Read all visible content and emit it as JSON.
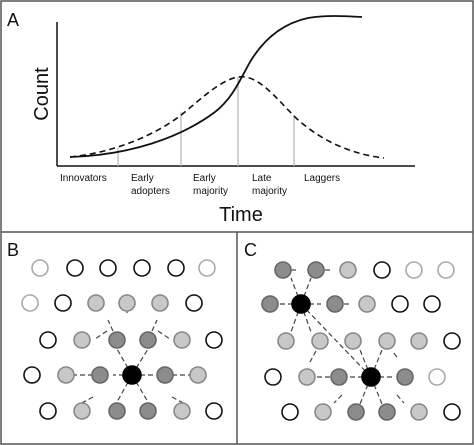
{
  "panels": {
    "a": {
      "letter": "A",
      "y_axis_label": "Count",
      "x_axis_label": "Time",
      "curves": {
        "cumulative_adoption": {
          "style": "solid",
          "shape": "s-curve"
        },
        "new_adopters": {
          "style": "dashed",
          "shape": "bell-curve"
        }
      },
      "phases": [
        {
          "id": "innovators",
          "lines": [
            "Innovators"
          ]
        },
        {
          "id": "early-adopters",
          "lines": [
            "Early",
            "adopters"
          ]
        },
        {
          "id": "early-majority",
          "lines": [
            "Early",
            "majority"
          ]
        },
        {
          "id": "late-majority",
          "lines": [
            "Late",
            "majority"
          ]
        },
        {
          "id": "laggers",
          "lines": [
            "Laggers"
          ]
        }
      ]
    },
    "b": {
      "letter": "B",
      "pattern": "single-seed-radial-spread"
    },
    "c": {
      "letter": "C",
      "pattern": "two-seed-spread"
    }
  },
  "node_legend": {
    "seed": "#000000",
    "first_ring": "#8c8c8c",
    "second_ring": "#c8c8c8",
    "late_adopter": "#bdbdbd",
    "non_adopter": "#ffffff"
  },
  "colors": {
    "border": "#555555",
    "curve": "#111111",
    "phase_divider": "#b5b5b5",
    "edge": "#444444"
  }
}
